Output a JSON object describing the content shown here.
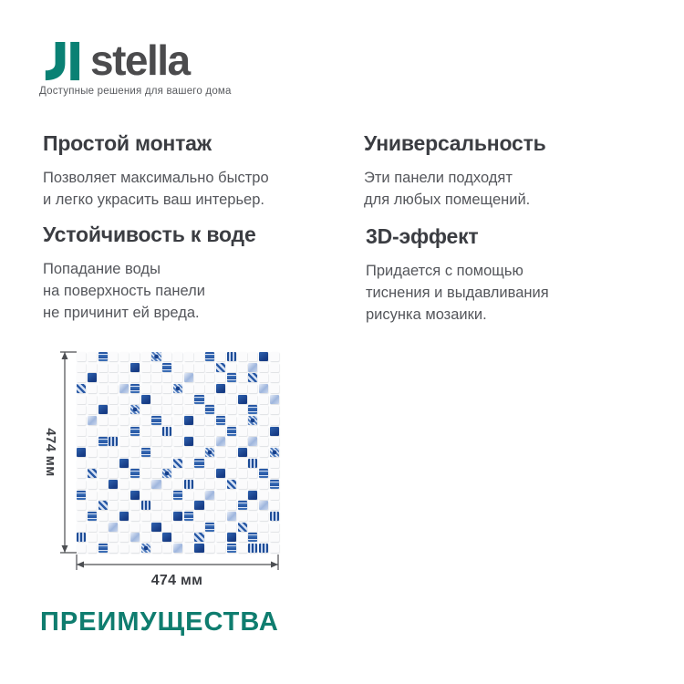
{
  "brand": {
    "logo_text": "stella",
    "tagline": "Доступные решения для вашего дома",
    "logo_color": "#0a8174",
    "wordmark_color": "#4b4b4d"
  },
  "features": [
    {
      "title": "Простой монтаж",
      "body": "Позволяет максимально быстро\nи легко украсить ваш интерьер."
    },
    {
      "title": "Универсальность",
      "body": "Эти панели подходят\nдля любых помещений."
    },
    {
      "title": "Устойчивость к воде",
      "body": "Попадание воды\nна поверхность панели\nне причинит ей вреда."
    },
    {
      "title": "3D-эффект",
      "body": "Придается с помощью\nтиснения и выдавливания\nрисунка мозаики."
    }
  ],
  "figure": {
    "width_label": "474 мм",
    "height_label": "474 мм",
    "grid_size": 19,
    "tile_palette": {
      "navy": "#1c4693",
      "mid": "#2f63b0",
      "light": "#b9cce9",
      "pale": "#dde7f5",
      "white": "#fbfbfc"
    },
    "pattern": [
      "..b....c....b.e..a.",
      ".....a..b....f..d..",
      ".a........d...b.f..",
      "f...db...c...a...d.",
      "......a....b...a..d",
      "..a..c......b...b..",
      ".d.....b..a..b..c..",
      ".....b..e.....b...a",
      "..be......a..d..d..",
      "a.....b.....c..a..c",
      "....a....f.b....e..",
      ".f...b..c....a...b.",
      "...a...d..e...f...b",
      "b....a...b..d...a..",
      "..f...e....a...b.d.",
      ".b..a....ab...d...e",
      "...d...a....b..f...",
      "e....d..a..f..a.b..",
      "..b...c..d.a..b.ee."
    ]
  },
  "footer": {
    "title": "ПРЕИМУЩЕСТВА",
    "color": "#0f7d6f"
  }
}
